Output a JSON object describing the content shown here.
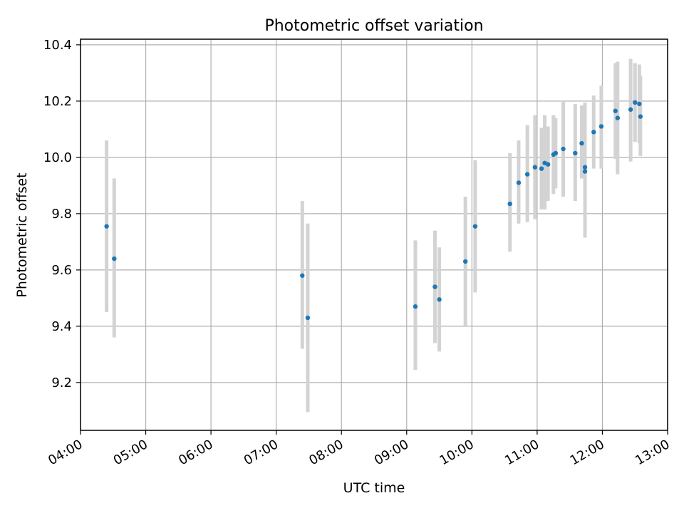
{
  "chart_data": {
    "type": "scatter",
    "title": "Photometric offset variation",
    "xlabel": "UTC time",
    "ylabel": "Photometric offset",
    "x_is_time": true,
    "xlim": [
      "04:00",
      "13:00"
    ],
    "ylim": [
      9.03,
      10.42
    ],
    "xticks": [
      "04:00",
      "05:00",
      "06:00",
      "07:00",
      "08:00",
      "09:00",
      "10:00",
      "11:00",
      "12:00",
      "13:00"
    ],
    "yticks": [
      9.2,
      9.4,
      9.6,
      9.8,
      10.0,
      10.2,
      10.4
    ],
    "ytick_labels": [
      "9.2",
      "9.4",
      "9.6",
      "9.8",
      "10.0",
      "10.2",
      "10.4"
    ],
    "grid": true,
    "colors": {
      "marker": "#1f77b4",
      "errorbar": "#d3d3d3",
      "grid": "#b0b0b0"
    },
    "points": [
      {
        "x": "04:24",
        "y": 9.755,
        "ylow": 9.45,
        "yhigh": 10.06
      },
      {
        "x": "04:31",
        "y": 9.64,
        "ylow": 9.36,
        "yhigh": 9.925
      },
      {
        "x": "07:24",
        "y": 9.58,
        "ylow": 9.32,
        "yhigh": 9.845
      },
      {
        "x": "07:29",
        "y": 9.43,
        "ylow": 9.095,
        "yhigh": 9.765
      },
      {
        "x": "09:08",
        "y": 9.47,
        "ylow": 9.245,
        "yhigh": 9.705
      },
      {
        "x": "09:26",
        "y": 9.54,
        "ylow": 9.34,
        "yhigh": 9.74
      },
      {
        "x": "09:30",
        "y": 9.495,
        "ylow": 9.31,
        "yhigh": 9.68
      },
      {
        "x": "09:54",
        "y": 9.63,
        "ylow": 9.4,
        "yhigh": 9.86
      },
      {
        "x": "10:03",
        "y": 9.755,
        "ylow": 9.52,
        "yhigh": 9.99
      },
      {
        "x": "10:35",
        "y": 9.835,
        "ylow": 9.665,
        "yhigh": 10.015
      },
      {
        "x": "10:43",
        "y": 9.91,
        "ylow": 9.765,
        "yhigh": 10.06
      },
      {
        "x": "10:51",
        "y": 9.94,
        "ylow": 9.77,
        "yhigh": 10.115
      },
      {
        "x": "10:58",
        "y": 9.965,
        "ylow": 9.78,
        "yhigh": 10.15
      },
      {
        "x": "11:04",
        "y": 9.96,
        "ylow": 9.815,
        "yhigh": 10.105
      },
      {
        "x": "11:07",
        "y": 9.98,
        "ylow": 9.815,
        "yhigh": 10.15
      },
      {
        "x": "11:10",
        "y": 9.975,
        "ylow": 9.845,
        "yhigh": 10.11
      },
      {
        "x": "11:15",
        "y": 10.01,
        "ylow": 9.87,
        "yhigh": 10.15
      },
      {
        "x": "11:17",
        "y": 10.015,
        "ylow": 9.89,
        "yhigh": 10.14
      },
      {
        "x": "11:24",
        "y": 10.03,
        "ylow": 9.86,
        "yhigh": 10.2
      },
      {
        "x": "11:35",
        "y": 10.015,
        "ylow": 9.845,
        "yhigh": 10.19
      },
      {
        "x": "11:41",
        "y": 10.05,
        "ylow": 9.925,
        "yhigh": 10.185
      },
      {
        "x": "11:44",
        "y": 9.965,
        "ylow": 9.935,
        "yhigh": 10.0
      },
      {
        "x": "11:44",
        "y": 9.95,
        "ylow": 9.715,
        "yhigh": 10.195
      },
      {
        "x": "11:52",
        "y": 10.09,
        "ylow": 9.96,
        "yhigh": 10.22
      },
      {
        "x": "11:59",
        "y": 10.11,
        "ylow": 9.96,
        "yhigh": 10.255
      },
      {
        "x": "12:12",
        "y": 10.165,
        "ylow": 9.995,
        "yhigh": 10.335
      },
      {
        "x": "12:14",
        "y": 10.14,
        "ylow": 9.94,
        "yhigh": 10.34
      },
      {
        "x": "12:26",
        "y": 10.17,
        "ylow": 9.985,
        "yhigh": 10.35
      },
      {
        "x": "12:30",
        "y": 10.195,
        "ylow": 10.055,
        "yhigh": 10.335
      },
      {
        "x": "12:34",
        "y": 10.19,
        "ylow": 10.05,
        "yhigh": 10.33
      },
      {
        "x": "12:35",
        "y": 10.145,
        "ylow": 10.005,
        "yhigh": 10.29
      }
    ]
  }
}
